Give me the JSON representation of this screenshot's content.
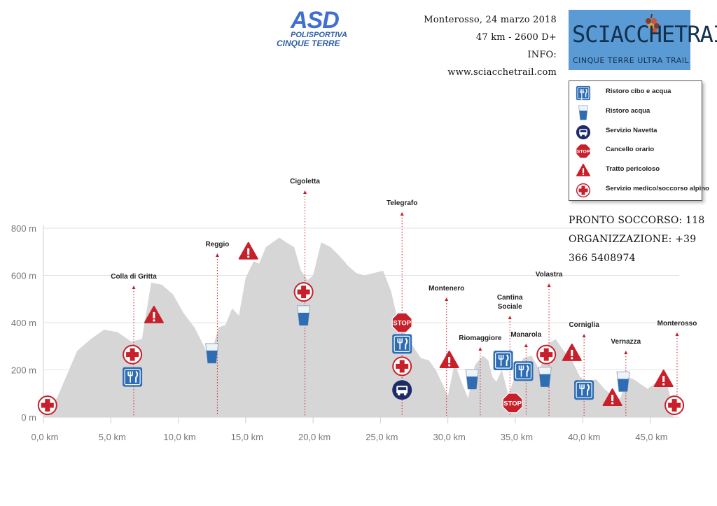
{
  "org_logo": {
    "name": "ASD",
    "line1": "POLISPORTIVA",
    "line2": "CINQUE TERRE"
  },
  "race_info": {
    "line1": "Monterosso, 24 marzo 2018",
    "line2": "47 km - 2600 D+",
    "line3": "INFO: www.sciacchetrail.com"
  },
  "race_logo": {
    "title": "SCIACCHETRAIL",
    "subtitle": "CINQUE TERRE ULTRA TRAIL"
  },
  "legend": [
    {
      "icon": "food-water-icon",
      "label": "Ristoro cibo e acqua"
    },
    {
      "icon": "water-cup-icon",
      "label": "Ristoro acqua"
    },
    {
      "icon": "shuttle-bus-icon",
      "label": "Servizio Navetta"
    },
    {
      "icon": "stop-sign-icon",
      "label": "Cancello orario"
    },
    {
      "icon": "warning-triangle-icon",
      "label": "Tratto pericoloso"
    },
    {
      "icon": "medical-cross-icon",
      "label": "Servizio medico/soccorso alpino"
    }
  ],
  "emergency": {
    "line1": "PRONTO SOCCORSO: 118",
    "line2": "ORGANIZZAZIONE: +39 366 5408974"
  },
  "colors": {
    "profile": "#d6d6d6",
    "grid": "#e2e2e2",
    "cross": "#c8202a",
    "icon_blue": "#2e6db4",
    "bus": "#1f2a6b"
  },
  "chart_data": {
    "type": "area",
    "title": "",
    "xlabel": "",
    "ylabel": "",
    "xlim": [
      0,
      47
    ],
    "ylim": [
      0,
      800
    ],
    "x_ticks": [
      0,
      5,
      10,
      15,
      20,
      25,
      30,
      35,
      40,
      45
    ],
    "x_tick_labels": [
      "0,0 km",
      "5,0 km",
      "10,0 km",
      "15,0 km",
      "20,0 km",
      "25,0 km",
      "30,0 km",
      "35,0 km",
      "40,0 km",
      "45,0 km"
    ],
    "y_ticks": [
      0,
      200,
      400,
      600,
      800
    ],
    "y_tick_labels": [
      "0 m",
      "200 m",
      "400 m",
      "600 m",
      "800 m"
    ],
    "grid": true,
    "profile": {
      "x": [
        0,
        1.0,
        2.5,
        3.5,
        4.5,
        5.5,
        6.5,
        7.3,
        8.0,
        8.8,
        9.6,
        10.4,
        11.2,
        12.0,
        12.3,
        13.0,
        13.5,
        14.0,
        14.5,
        15.0,
        15.6,
        16.0,
        16.5,
        17.0,
        17.5,
        18.0,
        18.6,
        19.1,
        19.6,
        20.0,
        20.6,
        21.3,
        22.0,
        22.6,
        23.2,
        23.8,
        24.5,
        25.2,
        25.8,
        26.2,
        26.8,
        27.4,
        28.0,
        28.6,
        29.1,
        29.6,
        30.0,
        30.5,
        31.0,
        31.5,
        32.0,
        32.6,
        33.0,
        33.3,
        33.6,
        34.0,
        34.5,
        35.0,
        35.6,
        36.2,
        36.8,
        37.4,
        38.0,
        38.6,
        39.2,
        39.8,
        40.4,
        41.0,
        41.6,
        42.2,
        42.8,
        43.3,
        43.8,
        44.3,
        44.8,
        45.3,
        45.8,
        46.3,
        46.7
      ],
      "y": [
        30,
        80,
        280,
        330,
        370,
        360,
        320,
        330,
        570,
        560,
        520,
        440,
        380,
        290,
        240,
        380,
        390,
        460,
        430,
        590,
        660,
        650,
        720,
        740,
        760,
        740,
        720,
        620,
        580,
        600,
        740,
        720,
        680,
        640,
        610,
        600,
        610,
        620,
        530,
        430,
        360,
        300,
        250,
        240,
        200,
        140,
        90,
        230,
        150,
        80,
        220,
        260,
        240,
        170,
        150,
        200,
        90,
        180,
        250,
        260,
        200,
        310,
        330,
        280,
        240,
        170,
        150,
        160,
        120,
        90,
        80,
        170,
        160,
        140,
        120,
        140,
        160,
        130,
        40
      ]
    },
    "points": [
      {
        "km": 6.7,
        "name": "Colla di Gritta"
      },
      {
        "km": 12.9,
        "name": "Reggio"
      },
      {
        "km": 19.4,
        "name": "Cigoletta"
      },
      {
        "km": 26.6,
        "name": "Telegrafo"
      },
      {
        "km": 29.9,
        "name": "Montenero"
      },
      {
        "km": 32.4,
        "name": "Riomaggiore"
      },
      {
        "km": 34.6,
        "name": "Cantina Sociale"
      },
      {
        "km": 35.8,
        "name": "Manarola"
      },
      {
        "km": 37.5,
        "name": "Volastra"
      },
      {
        "km": 40.1,
        "name": "Corniglia"
      },
      {
        "km": 43.2,
        "name": "Vernazza"
      },
      {
        "km": 47.0,
        "name": "Monterosso"
      }
    ],
    "markers": [
      {
        "type": "medical-cross",
        "km": 0.3,
        "alt": 50
      },
      {
        "type": "medical-cross",
        "km": 6.6,
        "alt": 265
      },
      {
        "type": "food-water",
        "km": 6.6,
        "alt": 170
      },
      {
        "type": "warning",
        "km": 8.2,
        "alt": 430
      },
      {
        "type": "water-cup",
        "km": 12.5,
        "alt": 270
      },
      {
        "type": "warning",
        "km": 15.2,
        "alt": 700
      },
      {
        "type": "medical-cross",
        "km": 19.3,
        "alt": 530
      },
      {
        "type": "water-cup",
        "km": 19.3,
        "alt": 430
      },
      {
        "type": "stop",
        "km": 26.6,
        "alt": 400
      },
      {
        "type": "food-water",
        "km": 26.6,
        "alt": 310
      },
      {
        "type": "medical-cross",
        "km": 26.6,
        "alt": 215
      },
      {
        "type": "shuttle-bus",
        "km": 26.6,
        "alt": 115
      },
      {
        "type": "warning",
        "km": 30.1,
        "alt": 240
      },
      {
        "type": "water-cup",
        "km": 31.8,
        "alt": 160
      },
      {
        "type": "food-water",
        "km": 34.1,
        "alt": 240
      },
      {
        "type": "stop",
        "km": 34.8,
        "alt": 60
      },
      {
        "type": "food-water",
        "km": 35.6,
        "alt": 195
      },
      {
        "type": "medical-cross",
        "km": 37.3,
        "alt": 265
      },
      {
        "type": "water-cup",
        "km": 37.2,
        "alt": 170
      },
      {
        "type": "warning",
        "km": 39.2,
        "alt": 270
      },
      {
        "type": "food-water",
        "km": 40.1,
        "alt": 115
      },
      {
        "type": "warning",
        "km": 42.2,
        "alt": 80
      },
      {
        "type": "water-cup",
        "km": 43.0,
        "alt": 150
      },
      {
        "type": "warning",
        "km": 46.0,
        "alt": 160
      },
      {
        "type": "medical-cross",
        "km": 46.8,
        "alt": 50
      }
    ]
  }
}
